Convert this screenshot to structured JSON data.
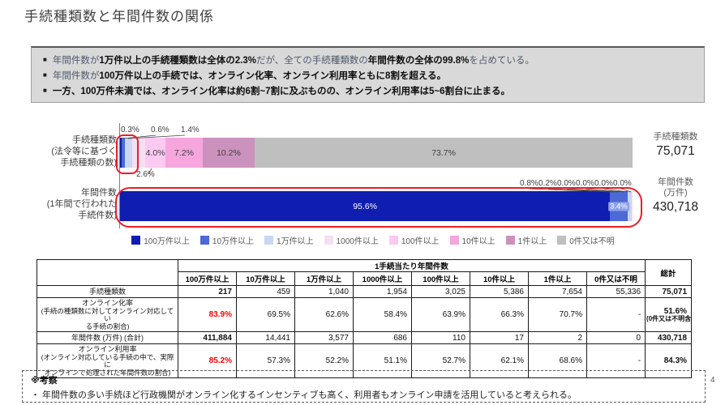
{
  "title": "手続種類数と年間件数の関係",
  "page_number": "4",
  "colors": {
    "navy": "#0f1db0",
    "blue": "#4c69d6",
    "lightBlue": "#c9d7f3",
    "palePink": "#f4e0f1",
    "lightPink": "#fcc9f2",
    "pink": "#f5a6dd",
    "mauve": "#cb92be",
    "gray": "#bfbfbf",
    "chip": "#8fa2e8",
    "red_annotation": "#ee1c25",
    "red_text": "#ff0000",
    "box_bg": "#d9d9d9"
  },
  "summary": {
    "bullets": [
      {
        "parts": [
          {
            "text": "年間件数が",
            "bold": false
          },
          {
            "text": "1万件以上の手続種類数は全体の2.3%",
            "bold": true
          },
          {
            "text": "だが、全ての手続種類数の",
            "bold": false
          },
          {
            "text": "年間件数の全体の99.8%",
            "bold": true
          },
          {
            "text": "を占めている。",
            "bold": false
          }
        ]
      },
      {
        "parts": [
          {
            "text": "年間件数が",
            "bold": false
          },
          {
            "text": "100万件以上の手続では、オンライン化率、オンライン利用率ともに8割を超える。",
            "bold": true
          }
        ]
      },
      {
        "parts": [
          {
            "text": "一方、100万件未満では、オンライン化率は約6割~7割に及ぶものの、オンライン利用率は5~6割台に止まる。",
            "bold": true
          }
        ]
      }
    ]
  },
  "chart": {
    "left_labels": [
      {
        "lines": [
          "手続種類数",
          "(法令等に基づく",
          "手続種類の数)"
        ]
      },
      {
        "lines": [
          "年間件数",
          "(1年間で行われた",
          "手続件数)"
        ]
      }
    ],
    "right_totals": [
      {
        "lines": [
          "手続種類数"
        ],
        "value": "75,071"
      },
      {
        "lines": [
          "年間件数",
          "(万件)"
        ],
        "value": "430,718"
      }
    ],
    "bars": [
      {
        "name": "手続種類数",
        "segments": [
          {
            "pct": 0.3,
            "c": "navy"
          },
          {
            "pct": 0.6,
            "c": "blue"
          },
          {
            "pct": 1.4,
            "c": "lightBlue"
          },
          {
            "pct": 2.6,
            "c": "palePink"
          },
          {
            "pct": 4.0,
            "c": "lightPink"
          },
          {
            "pct": 7.2,
            "c": "pink"
          },
          {
            "pct": 10.2,
            "c": "mauve"
          },
          {
            "pct": 73.7,
            "c": "gray"
          }
        ],
        "above_labels": [
          "0.3%",
          "0.6%",
          "1.4%"
        ],
        "below_label": "2.6%",
        "inside_labels": [
          {
            "si": 4,
            "text": "4.0%"
          },
          {
            "si": 5,
            "text": "7.2%"
          },
          {
            "si": 6,
            "text": "10.2%"
          },
          {
            "si": 7,
            "text": "73.7%"
          }
        ]
      },
      {
        "name": "年間件数",
        "segments": [
          {
            "pct": 95.6,
            "c": "navy"
          },
          {
            "pct": 3.4,
            "c": "blue"
          },
          {
            "pct": 0.8,
            "c": "lightBlue"
          },
          {
            "pct": 0.2,
            "c": "palePink"
          },
          {
            "pct": 0,
            "c": "lightPink"
          },
          {
            "pct": 0,
            "c": "pink"
          },
          {
            "pct": 0,
            "c": "mauve"
          },
          {
            "pct": 0,
            "c": "gray"
          }
        ],
        "above_labels": [
          "0.8%",
          "0.2%",
          "0.0%",
          "0.0%",
          "0.0%",
          "0.0%"
        ],
        "inside_labels": [
          {
            "si": 0,
            "text": "95.6%",
            "light": true
          },
          {
            "si": 1,
            "text": "3.4%",
            "chip": true
          }
        ]
      }
    ]
  },
  "legend": [
    {
      "label": "100万件以上",
      "color_key": "navy"
    },
    {
      "label": "10万件以上",
      "color_key": "blue"
    },
    {
      "label": "1万件以上",
      "color_key": "lightBlue"
    },
    {
      "label": "1000件以上",
      "color_key": "palePink"
    },
    {
      "label": "100件以上",
      "color_key": "lightPink"
    },
    {
      "label": "10件以上",
      "color_key": "pink"
    },
    {
      "label": "1件以上",
      "color_key": "mauve"
    },
    {
      "label": "0件又は不明",
      "color_key": "gray"
    }
  ],
  "table": {
    "group_header": "1手続当たり年間件数",
    "total_header": "総計",
    "col_headers": [
      "100万件以上",
      "10万件以上",
      "1万件以上",
      "1000件以上",
      "100件以上",
      "10件以上",
      "1件以上",
      "0件又は不明"
    ],
    "rows": [
      {
        "label": "手続種類数",
        "sub": [],
        "values": [
          "217",
          "459",
          "1,040",
          "1,954",
          "3,025",
          "5,386",
          "7,654",
          "55,336"
        ],
        "total": "75,071",
        "first_style": "bold",
        "h": 15
      },
      {
        "label": "オンライン化率",
        "sub": [
          "(手続の種類数に対してオンライン対応してい",
          "る手続の割合)"
        ],
        "values": [
          "83.9%",
          "69.5%",
          "62.6%",
          "58.4%",
          "63.9%",
          "66.3%",
          "70.7%",
          "-"
        ],
        "total": "51.6%",
        "total_sub": "(0件又は不明含む)",
        "first_style": "red",
        "h": 40
      },
      {
        "label": "年間件数 (万件) (合計)",
        "sub": [],
        "values": [
          "411,884",
          "14,441",
          "3,577",
          "686",
          "110",
          "17",
          "2",
          "0"
        ],
        "total": "430,718",
        "first_style": "bold",
        "h": 15
      },
      {
        "label": "オンライン利用率",
        "sub": [
          "(オンライン対応している手続の中で、実際に",
          "オンラインで処理された年間件数の割合)"
        ],
        "values": [
          "85.2%",
          "57.3%",
          "52.2%",
          "51.1%",
          "52.7%",
          "62.1%",
          "68.6%",
          "-"
        ],
        "total": "84.3%",
        "first_style": "red",
        "h": 30
      }
    ]
  },
  "note": {
    "heading": "※考察",
    "text": "・ 年間件数の多い手続ほど行政機関がオンライン化するインセンティブも高く、利用者もオンライン申請を活用していると考えられる。"
  },
  "chart_data": {
    "type": "bar",
    "subtype": "horizontal-stacked-100pct",
    "title": "手続種類数と年間件数の関係",
    "categories": [
      "100万件以上",
      "10万件以上",
      "1万件以上",
      "1000件以上",
      "100件以上",
      "10件以上",
      "1件以上",
      "0件又は不明"
    ],
    "series": [
      {
        "name": "手続種類数(法令等に基づく手続種類の数)",
        "unit": "percent",
        "values": [
          0.3,
          0.6,
          1.4,
          2.6,
          4.0,
          7.2,
          10.2,
          73.7
        ],
        "total_label": "75,071"
      },
      {
        "name": "年間件数(1年間で行われた手続件数)",
        "unit": "percent",
        "values": [
          95.6,
          3.4,
          0.8,
          0.2,
          0.0,
          0.0,
          0.0,
          0.0
        ],
        "total_label": "430,718 (万件)"
      }
    ],
    "legend_position": "bottom",
    "annotations": [
      "赤枠: 1万件以上の手続種類 (全体の2.3%)",
      "赤枠: 年間件数ほぼ全体 (99.8%)"
    ],
    "table": {
      "group_header": "1手続当たり年間件数",
      "columns": [
        "100万件以上",
        "10万件以上",
        "1万件以上",
        "1000件以上",
        "100件以上",
        "10件以上",
        "1件以上",
        "0件又は不明",
        "総計"
      ],
      "rows": [
        {
          "label": "手続種類数",
          "values": [
            217,
            459,
            1040,
            1954,
            3025,
            5386,
            7654,
            55336,
            75071
          ]
        },
        {
          "label": "オンライン化率(手続の種類数に対してオンライン対応している手続の割合)",
          "values": [
            "83.9%",
            "69.5%",
            "62.6%",
            "58.4%",
            "63.9%",
            "66.3%",
            "70.7%",
            "-",
            "51.6%(0件又は不明含む)"
          ]
        },
        {
          "label": "年間件数(万件)(合計)",
          "values": [
            411884,
            14441,
            3577,
            686,
            110,
            17,
            2,
            0,
            430718
          ]
        },
        {
          "label": "オンライン利用率(オンライン対応している手続の中で、実際にオンラインで処理された年間件数の割合)",
          "values": [
            "85.2%",
            "57.3%",
            "52.2%",
            "51.1%",
            "52.7%",
            "62.1%",
            "68.6%",
            "-",
            "84.3%"
          ]
        }
      ]
    }
  }
}
